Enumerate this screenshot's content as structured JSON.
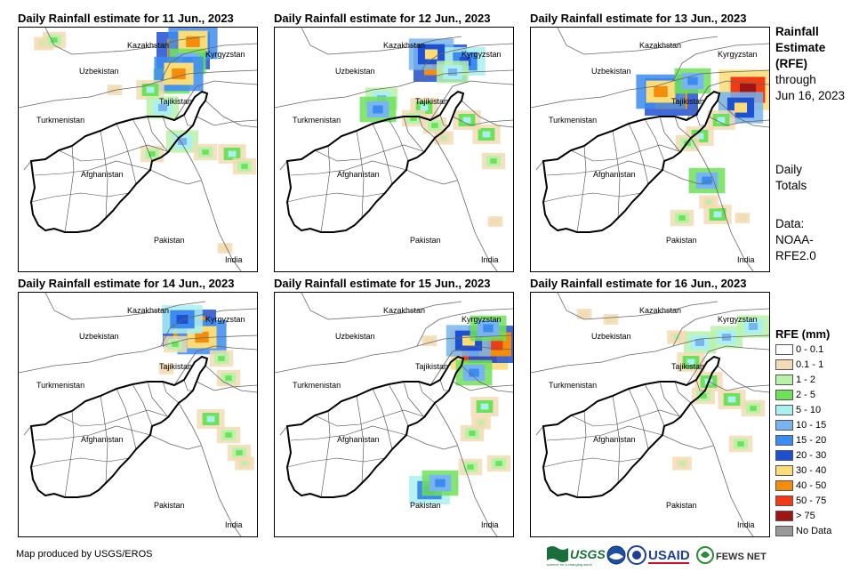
{
  "panels": [
    {
      "title": "Daily Rainfall estimate for 11 Jun., 2023"
    },
    {
      "title": "Daily Rainfall estimate for 12 Jun., 2023"
    },
    {
      "title": "Daily Rainfall estimate for 13 Jun., 2023"
    },
    {
      "title": "Daily Rainfall estimate for 14 Jun., 2023"
    },
    {
      "title": "Daily Rainfall estimate for 15 Jun., 2023"
    },
    {
      "title": "Daily Rainfall estimate for 16 Jun., 2023"
    }
  ],
  "map_labels": {
    "kazakhstan": "Kazakhstan",
    "kyrgyzstan": "Kyrgyzstan",
    "uzbekistan": "Uzbekistan",
    "tajikistan": "Tajikistan",
    "turkmenistan": "Turkmenistan",
    "afghanistan": "Afghanistan",
    "pakistan": "Pakistan",
    "india": "India"
  },
  "side": {
    "title_line1": "Rainfall",
    "title_line2": "Estimate",
    "title_line3": "(RFE)",
    "through": "through",
    "date": "Jun 16, 2023",
    "daily1": "Daily",
    "daily2": "Totals",
    "data1": "Data:",
    "data2": "NOAA-",
    "data3": "RFE2.0"
  },
  "legend": {
    "title": "RFE (mm)",
    "items": [
      {
        "label": "0 - 0.1",
        "color": "#ffffff"
      },
      {
        "label": "0.1 - 1",
        "color": "#f2dcb5"
      },
      {
        "label": "1 - 2",
        "color": "#b8f2a8"
      },
      {
        "label": "2 - 5",
        "color": "#6ee05a"
      },
      {
        "label": "5 - 10",
        "color": "#aaf0f0"
      },
      {
        "label": "10 - 15",
        "color": "#78b4f0"
      },
      {
        "label": "15 - 20",
        "color": "#3c8cf0"
      },
      {
        "label": "20 - 30",
        "color": "#1e50d2"
      },
      {
        "label": "30 - 40",
        "color": "#fadc78"
      },
      {
        "label": "40 - 50",
        "color": "#f58c0a"
      },
      {
        "label": "50 - 75",
        "color": "#f03c14"
      },
      {
        "label": "> 75",
        "color": "#a01414"
      },
      {
        "label": "No Data",
        "color": "#999999"
      }
    ]
  },
  "footer": {
    "credit": "Map produced by USGS/EROS"
  },
  "logos": {
    "usgs": "USGS",
    "usgs_tag": "science for a changing world",
    "usaid": "USAID",
    "fews": "FEWS NET"
  }
}
